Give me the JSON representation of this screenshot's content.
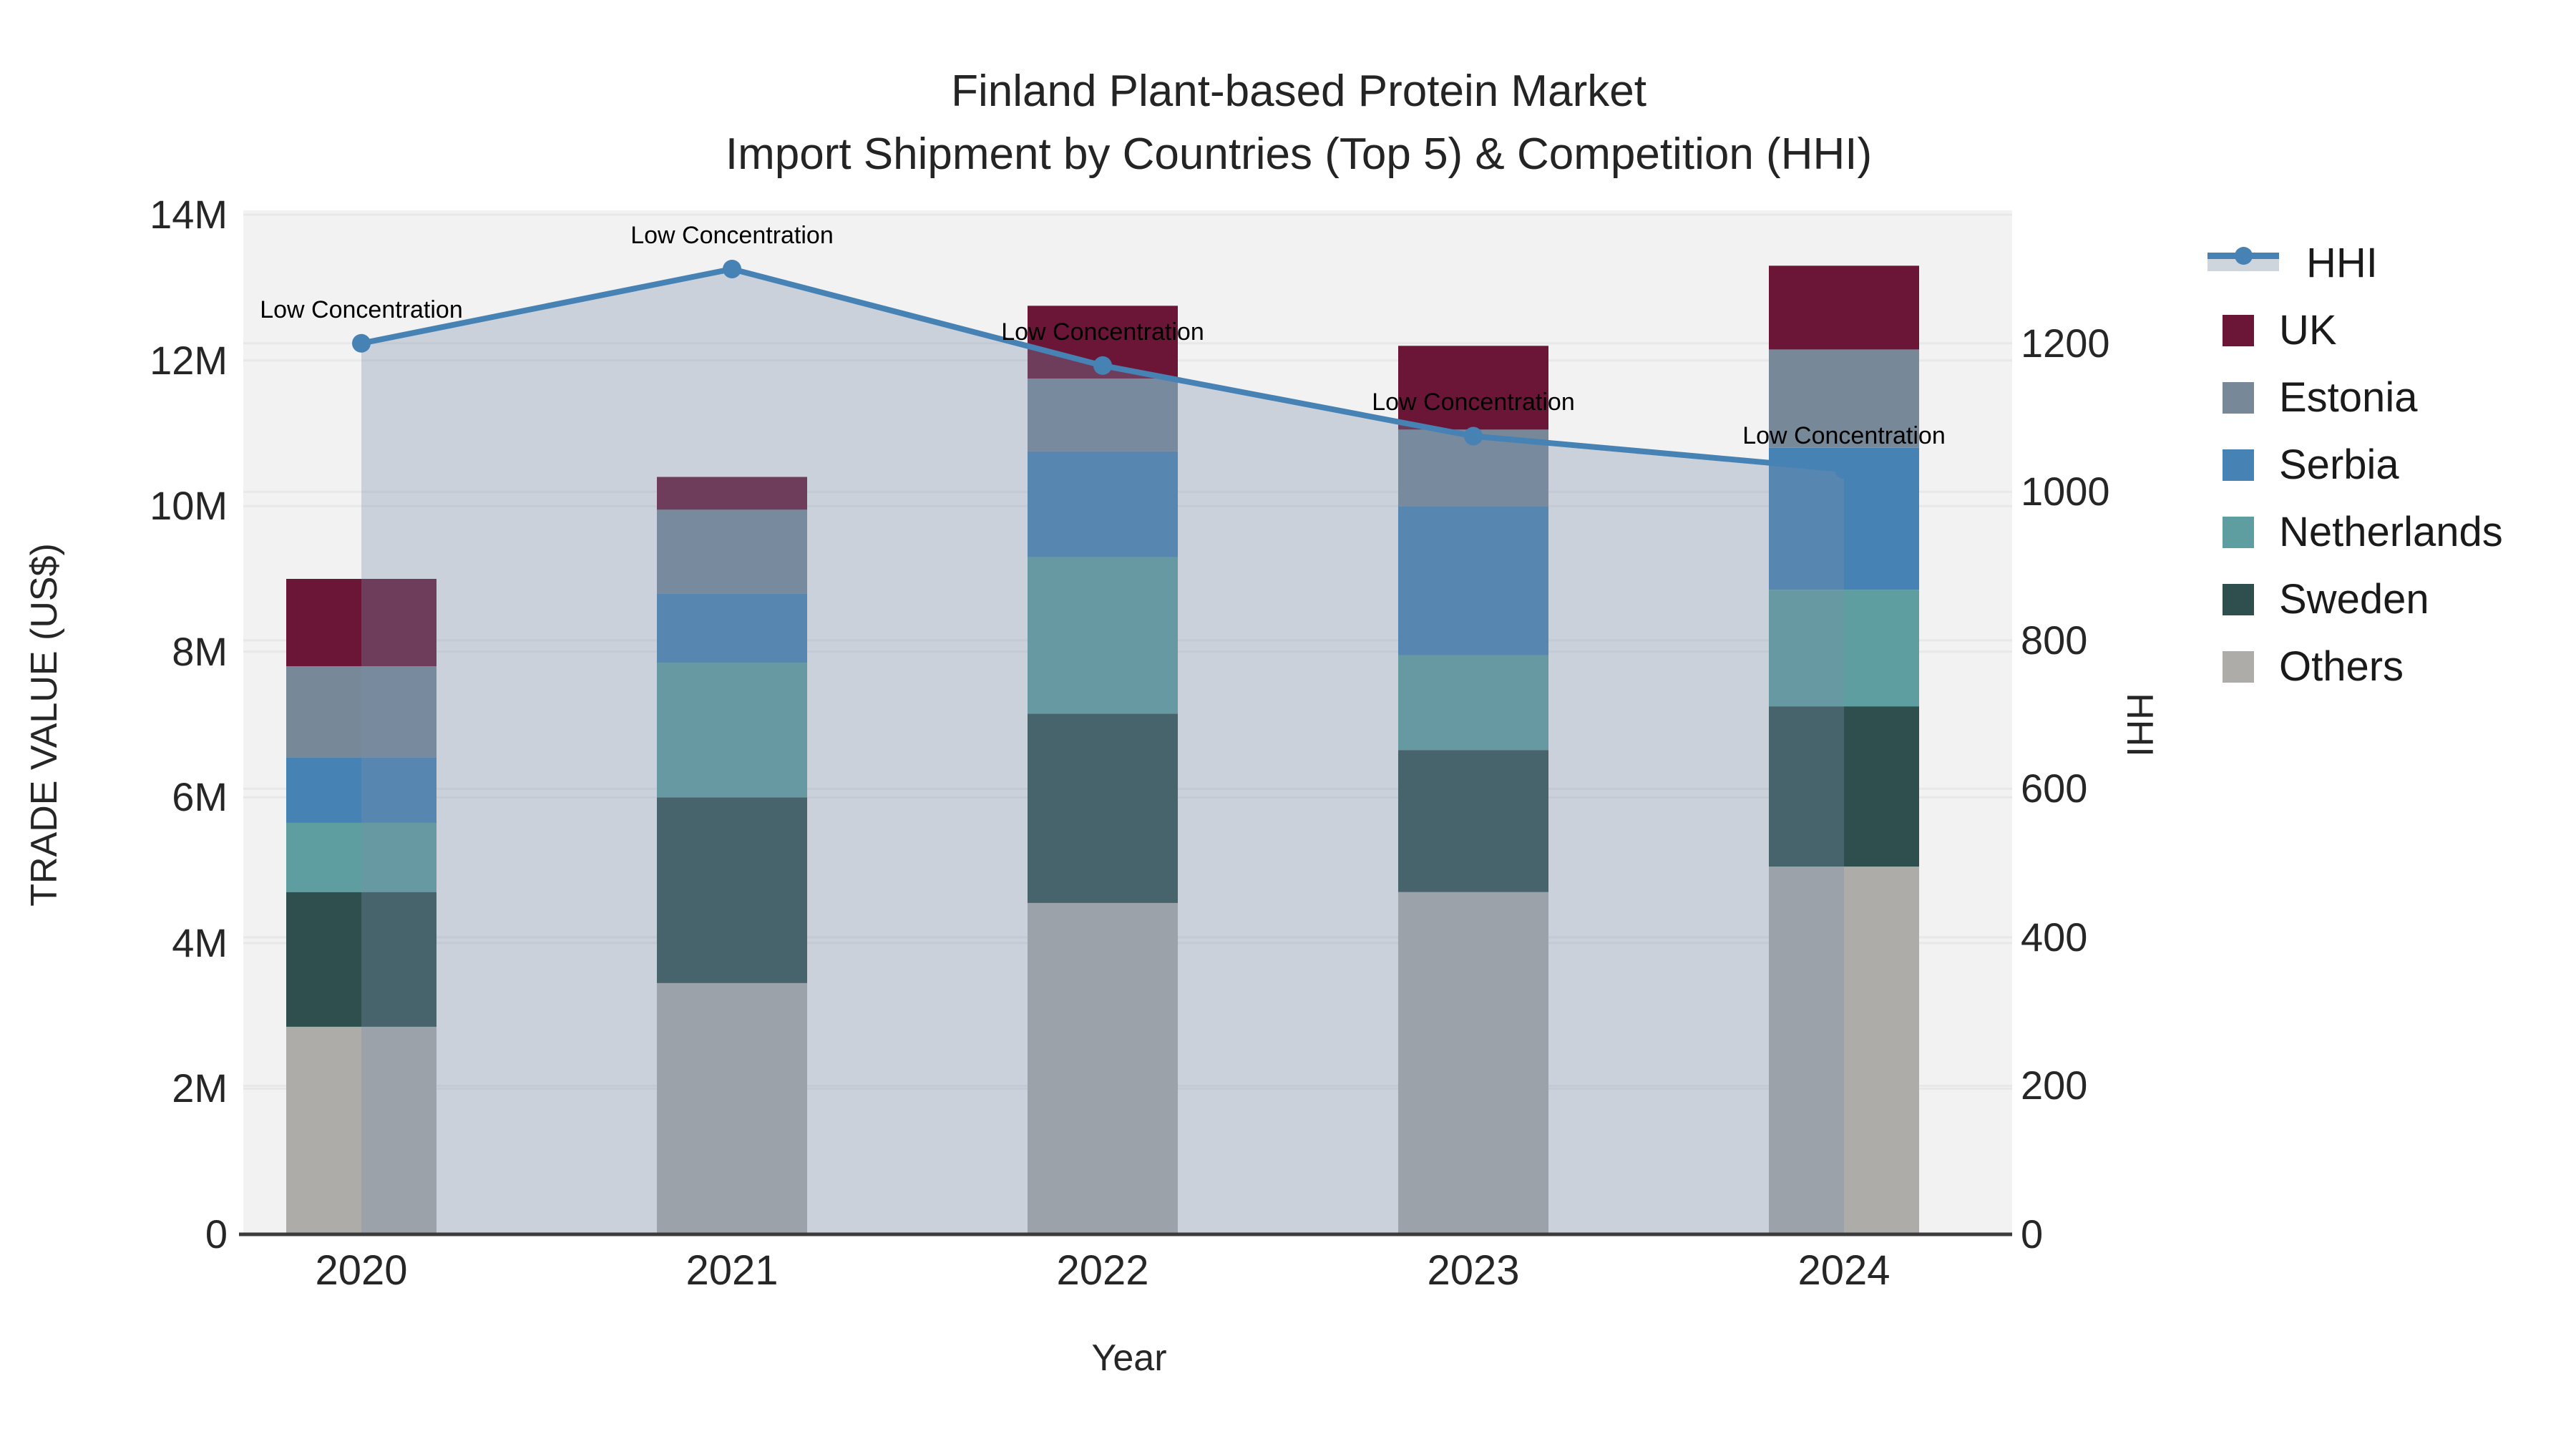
{
  "title": {
    "line1": "Finland Plant-based Protein Market",
    "line2": "Import Shipment by Countries (Top 5) & Competition (HHI)"
  },
  "axes": {
    "x": {
      "title": "Year",
      "ticks": [
        "2020",
        "2021",
        "2022",
        "2023",
        "2024"
      ]
    },
    "y_left": {
      "title": "TRADE VALUE (US$)",
      "ticks": [
        "0",
        "2M",
        "4M",
        "6M",
        "8M",
        "10M",
        "12M",
        "14M"
      ],
      "range_millions": [
        0,
        14.06
      ]
    },
    "y_right": {
      "title": "HHI",
      "ticks": [
        "0",
        "200",
        "400",
        "600",
        "800",
        "1000",
        "1200"
      ],
      "range": [
        0,
        1379
      ]
    }
  },
  "chart_data": {
    "type": "bar+line",
    "categories": [
      "2020",
      "2021",
      "2022",
      "2023",
      "2024"
    ],
    "bar_unit": "US$ millions",
    "stack_order": "bottom to top",
    "series": [
      {
        "name": "Others",
        "color": "#aeaca9",
        "values": [
          2.85,
          3.45,
          4.55,
          4.7,
          5.05
        ]
      },
      {
        "name": "Sweden",
        "color": "#2f4f4f",
        "values": [
          1.85,
          2.55,
          2.6,
          1.95,
          2.2
        ]
      },
      {
        "name": "Netherlands",
        "color": "#5f9ea0",
        "values": [
          0.95,
          1.85,
          2.15,
          1.3,
          1.6
        ]
      },
      {
        "name": "Serbia",
        "color": "#4682b4",
        "values": [
          0.9,
          0.95,
          1.45,
          2.05,
          1.95
        ]
      },
      {
        "name": "Estonia",
        "color": "#778899",
        "values": [
          1.25,
          1.15,
          1.0,
          1.05,
          1.35
        ]
      },
      {
        "name": "UK",
        "color": "#6b1637",
        "values": [
          1.2,
          0.45,
          1.0,
          1.15,
          1.15
        ]
      }
    ],
    "bar_totals_millions": [
      9.0,
      10.4,
      12.75,
      12.2,
      13.3
    ],
    "line": {
      "name": "HHI",
      "axis": "right",
      "color": "#4682b4",
      "area_fill": "rgba(122,142,169,0.33)",
      "values": [
        1200,
        1300,
        1170,
        1075,
        1030
      ]
    },
    "annotations": [
      {
        "x": "2020",
        "text": "Low Concentration"
      },
      {
        "x": "2021",
        "text": "Low Concentration"
      },
      {
        "x": "2022",
        "text": "Low Concentration"
      },
      {
        "x": "2023",
        "text": "Low Concentration"
      },
      {
        "x": "2024",
        "text": "Low Concentration"
      }
    ],
    "grid": "horizontal, both axes",
    "legend_position": "right"
  },
  "legend": {
    "items": [
      {
        "label": "HHI",
        "type": "line",
        "color": "#4682b4"
      },
      {
        "label": "UK",
        "type": "swatch",
        "color": "#6b1637"
      },
      {
        "label": "Estonia",
        "type": "swatch",
        "color": "#778899"
      },
      {
        "label": "Serbia",
        "type": "swatch",
        "color": "#4682b4"
      },
      {
        "label": "Netherlands",
        "type": "swatch",
        "color": "#5f9ea0"
      },
      {
        "label": "Sweden",
        "type": "swatch",
        "color": "#2f4f4f"
      },
      {
        "label": "Others",
        "type": "swatch",
        "color": "#aeaca9"
      }
    ]
  }
}
